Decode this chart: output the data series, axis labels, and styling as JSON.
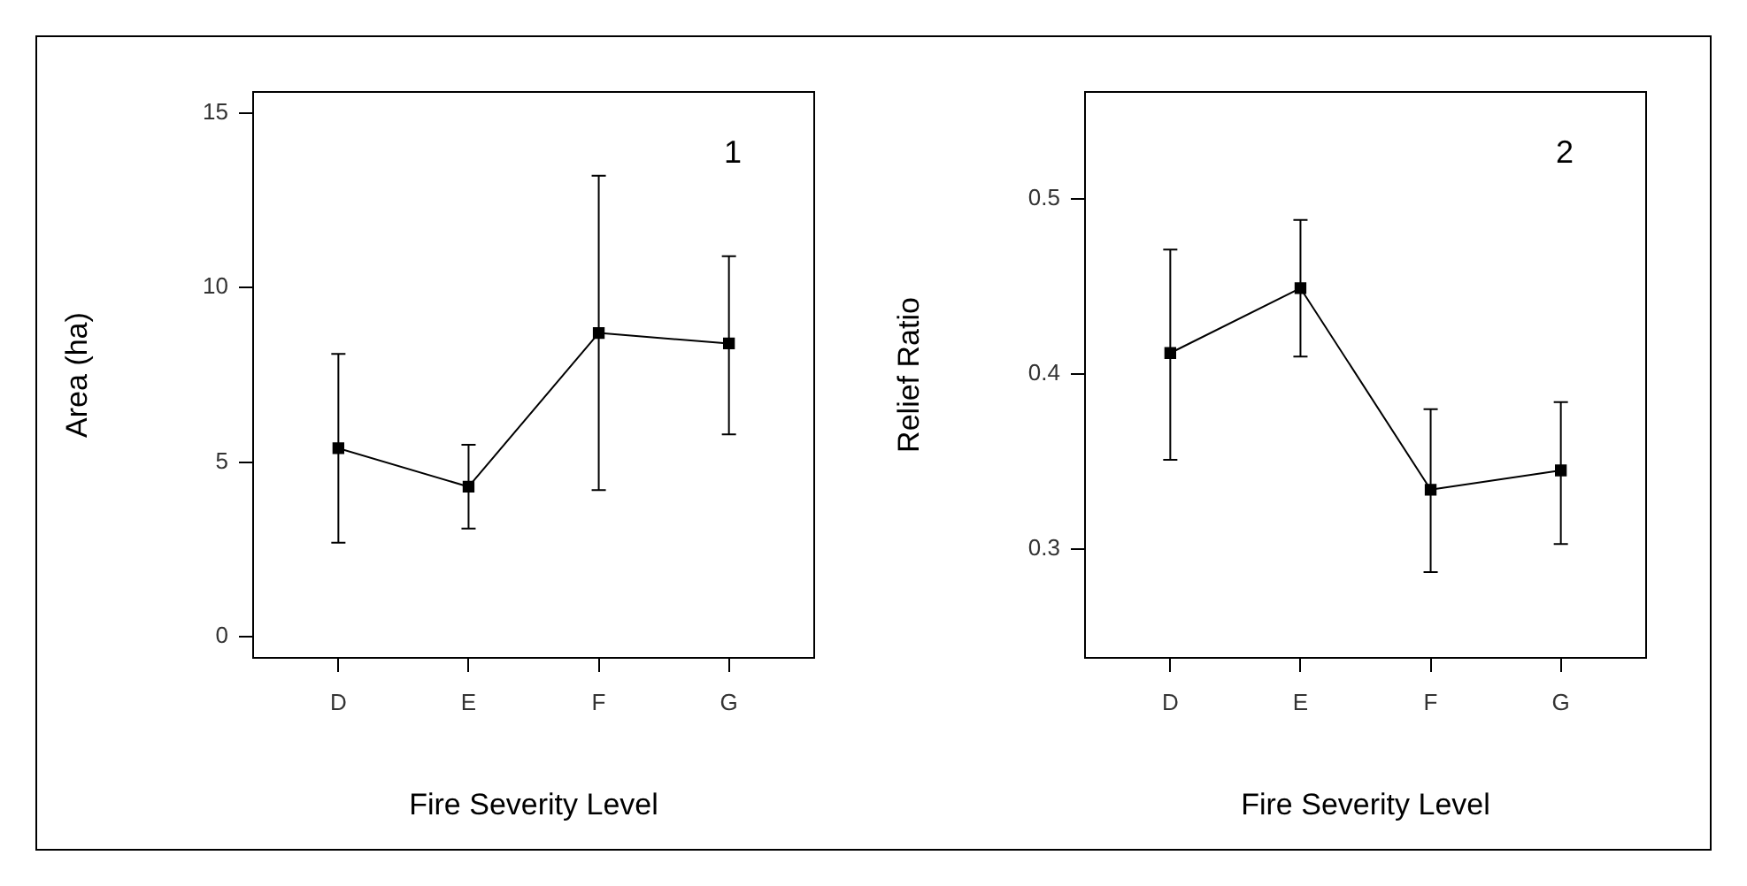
{
  "chart_data": [
    {
      "type": "line",
      "xlabel": "Fire Severity Level",
      "ylabel": "Area (ha)",
      "categories": [
        "D",
        "E",
        "F",
        "G"
      ],
      "values": [
        5.4,
        4.3,
        8.7,
        8.4
      ],
      "errors": [
        [
          2.7,
          8.1
        ],
        [
          3.1,
          5.5
        ],
        [
          4.2,
          13.2
        ],
        [
          5.8,
          10.9
        ]
      ],
      "color": "#000000",
      "marker": "square",
      "line_style": "solid",
      "ylim": [
        -0.6,
        15.6
      ],
      "yticks": [
        0,
        5,
        10,
        15
      ],
      "annotations": [
        "1"
      ]
    },
    {
      "type": "line",
      "xlabel": "Fire Severity Level",
      "ylabel": "Relief Ratio",
      "categories": [
        "D",
        "E",
        "F",
        "G"
      ],
      "values": [
        0.412,
        0.449,
        0.334,
        0.345
      ],
      "errors": [
        [
          0.351,
          0.471
        ],
        [
          0.41,
          0.488
        ],
        [
          0.287,
          0.38
        ],
        [
          0.303,
          0.384
        ]
      ],
      "color": "#000000",
      "marker": "square",
      "line_style": "solid",
      "ylim": [
        0.238,
        0.561
      ],
      "yticks": [
        0.3,
        0.4,
        0.5
      ],
      "annotations": [
        "2"
      ]
    }
  ]
}
